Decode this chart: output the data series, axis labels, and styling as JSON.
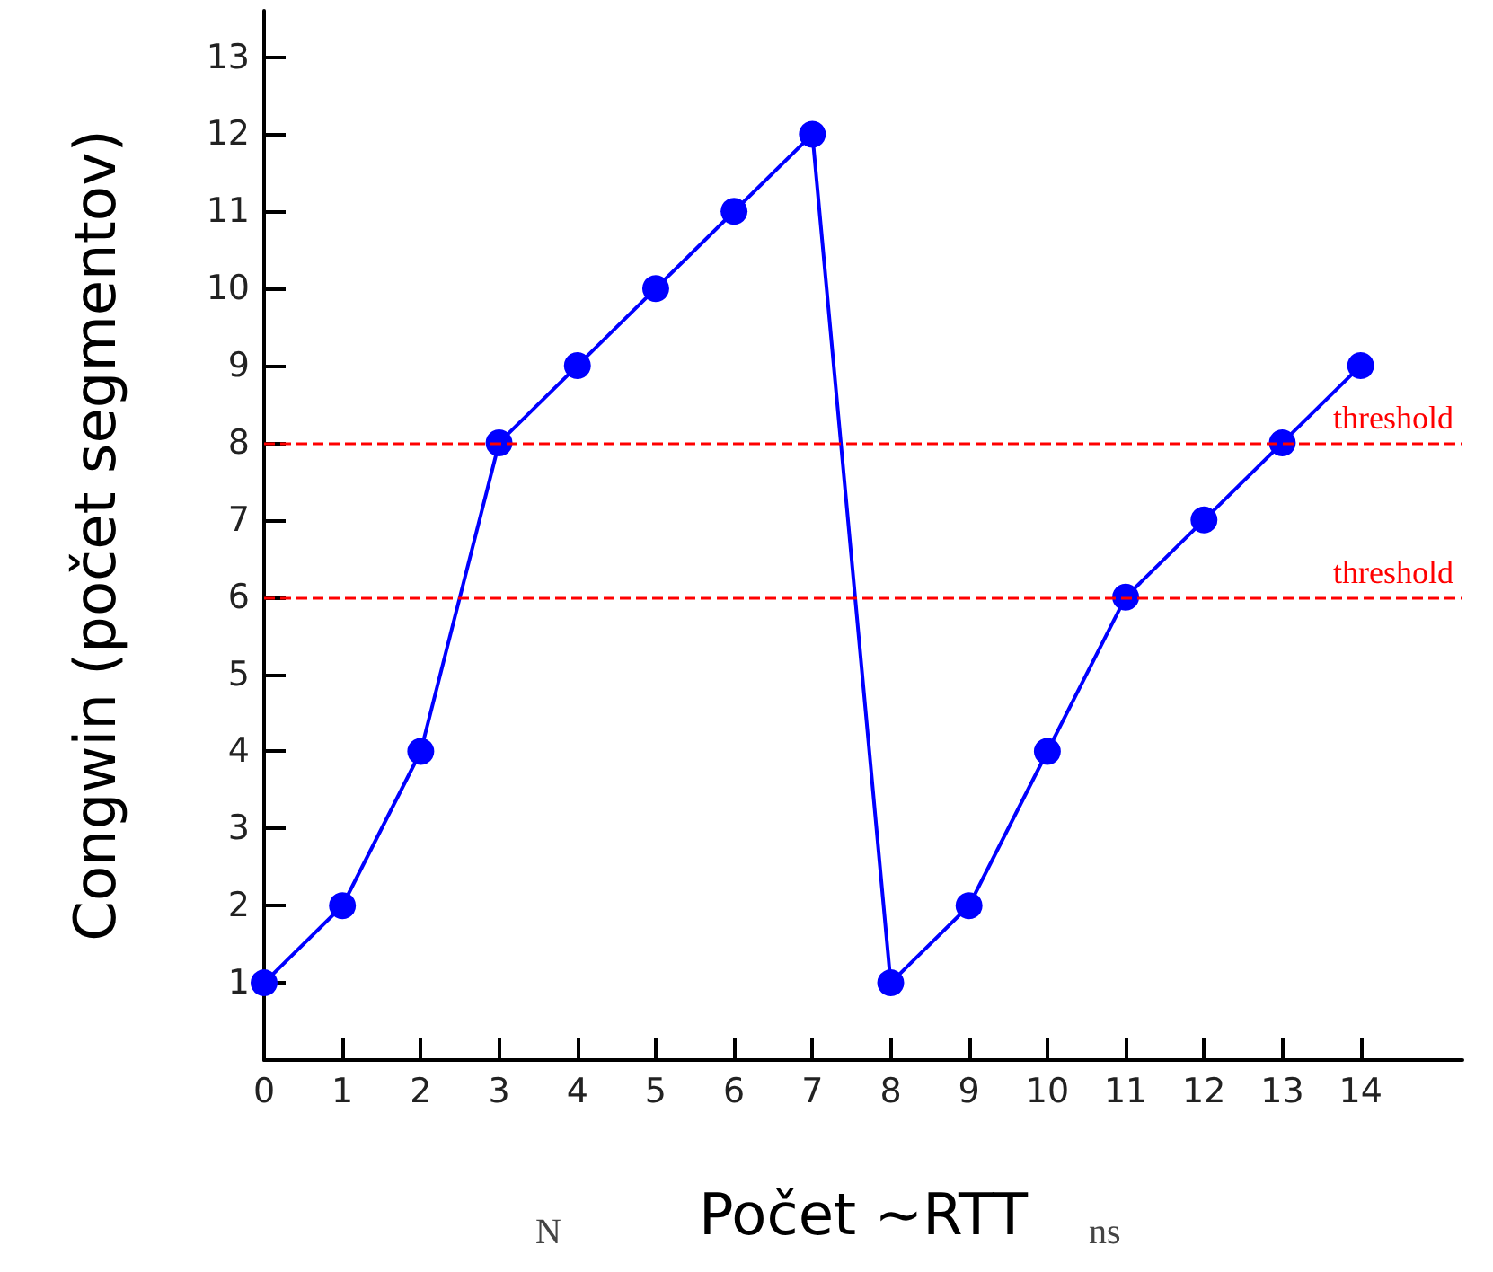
{
  "chart_data": {
    "type": "line",
    "xlabel": "Počet ~RTT",
    "ylabel": "Congwin (počet segmentov)",
    "annotations": [
      "N",
      "ns"
    ],
    "x": [
      0,
      1,
      2,
      3,
      4,
      5,
      6,
      7,
      8,
      9,
      10,
      11,
      12,
      13,
      14
    ],
    "series": [
      {
        "color": "#0000ff",
        "values": [
          1,
          2,
          4,
          8,
          9,
          10,
          11,
          12,
          1,
          2,
          4,
          6,
          7,
          8,
          9
        ]
      }
    ],
    "xlim": [
      0,
      15.3
    ],
    "xticks": [
      0,
      1,
      2,
      3,
      4,
      5,
      6,
      7,
      8,
      9,
      10,
      11,
      12,
      13,
      14
    ],
    "ylim": [
      0,
      13.6
    ],
    "yticks": [
      1,
      2,
      3,
      4,
      5,
      6,
      7,
      8,
      9,
      10,
      11,
      12,
      13
    ],
    "ref_lines": [
      {
        "axis": "y",
        "value": 8,
        "label": "threshold",
        "color": "#ff0000",
        "line_style": "dashed"
      },
      {
        "axis": "y",
        "value": 6,
        "label": "threshold",
        "color": "#ff0000",
        "line_style": "dashed"
      }
    ],
    "marker": "circle",
    "line_style": "solid"
  }
}
